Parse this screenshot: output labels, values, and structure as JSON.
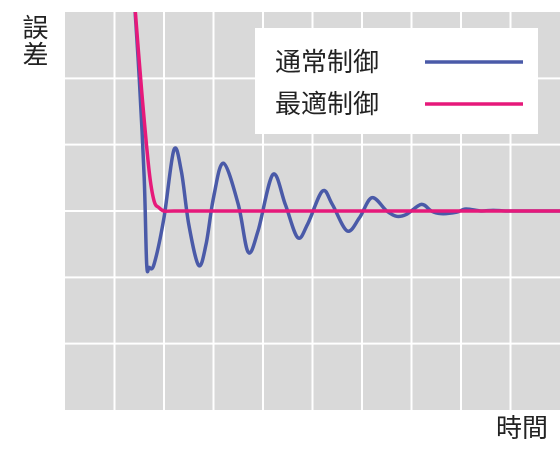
{
  "chart_data": {
    "type": "line",
    "xlabel": "時間",
    "ylabel": "誤差",
    "grid": true,
    "legend_position": "top-right",
    "xlim": [
      0,
      10
    ],
    "ylim": [
      -3,
      3
    ],
    "series": [
      {
        "name": "通常制御",
        "color": "#4a5aa8",
        "x": [
          1.4,
          1.5,
          1.6,
          1.65,
          1.7,
          1.8,
          2.0,
          2.2,
          2.35,
          2.5,
          2.7,
          2.85,
          3.0,
          3.2,
          3.5,
          3.7,
          3.9,
          4.2,
          4.45,
          4.7,
          4.9,
          5.2,
          5.4,
          5.7,
          5.95,
          6.2,
          6.5,
          6.7,
          6.9,
          7.2,
          7.4,
          7.6,
          7.9,
          8.1,
          8.4,
          8.65,
          8.9,
          9.2,
          9.5,
          9.75,
          10.0
        ],
        "values": [
          3.2,
          2.0,
          0.5,
          -0.8,
          -0.85,
          -0.8,
          -0.1,
          0.92,
          0.6,
          -0.2,
          -0.82,
          -0.5,
          0.2,
          0.72,
          0.1,
          -0.62,
          -0.3,
          0.55,
          0.1,
          -0.4,
          -0.2,
          0.3,
          0.1,
          -0.3,
          -0.1,
          0.2,
          0.0,
          -0.08,
          -0.05,
          0.1,
          0.0,
          -0.04,
          -0.02,
          0.03,
          0.0,
          0.01,
          0.0,
          0.0,
          0.0,
          0.0,
          0.0
        ]
      },
      {
        "name": "最適制御",
        "color": "#e6197a",
        "x": [
          1.4,
          1.55,
          1.7,
          1.8,
          1.9,
          2.0,
          2.2,
          3.0,
          5.0,
          7.0,
          10.0
        ],
        "values": [
          3.2,
          1.8,
          0.6,
          0.15,
          0.05,
          0.0,
          0.0,
          0.0,
          0.0,
          0.0,
          0.0
        ]
      }
    ]
  }
}
